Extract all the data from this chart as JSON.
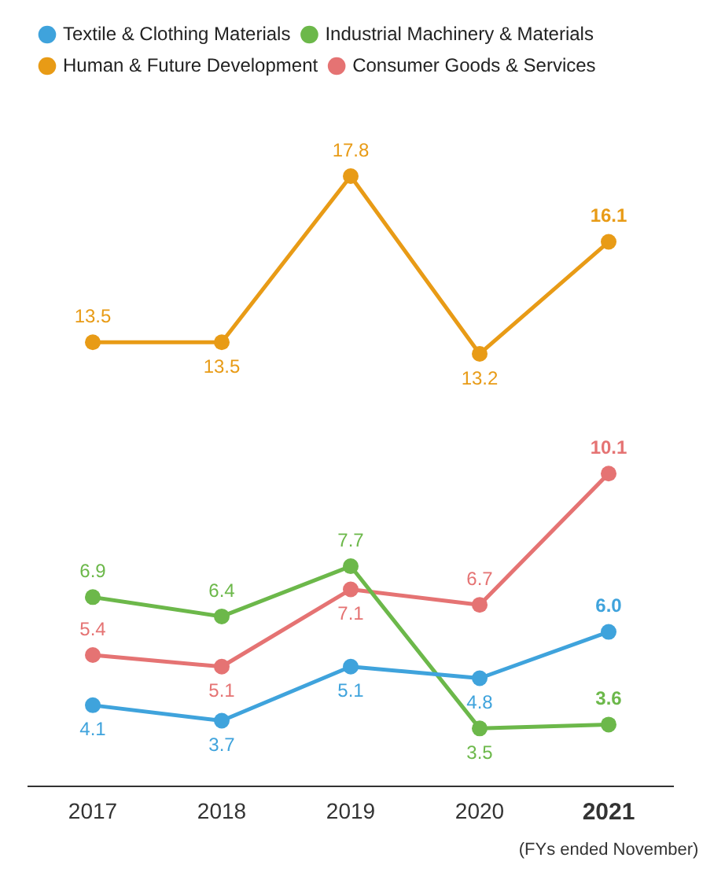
{
  "chart_data": {
    "type": "line",
    "categories": [
      "2017",
      "2018",
      "2019",
      "2020",
      "2021"
    ],
    "series": [
      {
        "name": "Textile & Clothing Materials",
        "color": "#3fa3dc",
        "values": [
          4.1,
          3.7,
          5.1,
          4.8,
          6.0
        ],
        "value_labels": [
          "4.1",
          "3.7",
          "5.1",
          "4.8",
          "6.0"
        ]
      },
      {
        "name": "Industrial Machinery & Materials",
        "color": "#6cb84a",
        "values": [
          6.9,
          6.4,
          7.7,
          3.5,
          3.6
        ],
        "value_labels": [
          "6.9",
          "6.4",
          "7.7",
          "3.5",
          "3.6"
        ]
      },
      {
        "name": "Human & Future Development",
        "color": "#e89b16",
        "values": [
          13.5,
          13.5,
          17.8,
          13.2,
          16.1
        ],
        "value_labels": [
          "13.5",
          "13.5",
          "17.8",
          "13.2",
          "16.1"
        ]
      },
      {
        "name": "Consumer Goods & Services",
        "color": "#e57373",
        "values": [
          5.4,
          5.1,
          7.1,
          6.7,
          10.1
        ],
        "value_labels": [
          "5.4",
          "5.1",
          "7.1",
          "6.7",
          "10.1"
        ]
      }
    ],
    "legend": "top",
    "marker": "circle",
    "line_style": "solid",
    "grid": false,
    "annotations": [
      "(FYs ended November)"
    ]
  }
}
